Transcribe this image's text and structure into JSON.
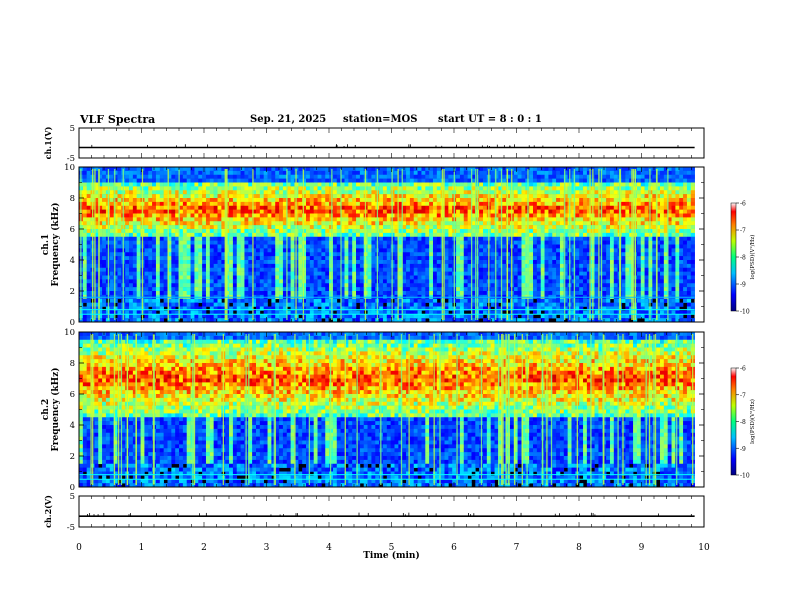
{
  "header": {
    "title": "VLF Spectra",
    "date": "Sep. 21, 2025",
    "station": "station=MOS",
    "start_ut": "start UT =  8 : 0  : 1"
  },
  "chart_data": [
    {
      "type": "line",
      "ylabel": "ch.1(V)",
      "ylim": [
        -5,
        5
      ],
      "yticks": [
        "5",
        "-5"
      ],
      "baseline": -1.5
    },
    {
      "type": "heatmap",
      "ylabel_top": "ch.1",
      "ylabel": "Frequency (kHz)",
      "ylim": [
        0,
        10
      ],
      "yticks": [
        "0",
        "2",
        "4",
        "6",
        "8",
        "10"
      ],
      "band_khz": [
        5.5,
        9.0
      ],
      "colorbar": {
        "label": "log(PSD)(V²/Hz)",
        "range": [
          -10,
          -6
        ],
        "ticks": [
          "-6",
          "-7",
          "-8",
          "-9",
          "-10"
        ]
      }
    },
    {
      "type": "heatmap",
      "ylabel_top": "ch.2",
      "ylabel": "Frequency (kHz)",
      "ylim": [
        0,
        10
      ],
      "yticks": [
        "0",
        "2",
        "4",
        "6",
        "8",
        "10"
      ],
      "band_khz": [
        4.5,
        9.5
      ],
      "colorbar": {
        "label": "log(PSD)(V²/Hz)",
        "range": [
          -10,
          -6
        ],
        "ticks": [
          "-6",
          "-7",
          "-8",
          "-9",
          "-10"
        ]
      }
    },
    {
      "type": "line",
      "ylabel": "ch.2(V)",
      "ylim": [
        -5,
        5
      ],
      "yticks": [
        "5",
        "-5"
      ],
      "baseline": -1.5
    }
  ],
  "xaxis": {
    "label": "Time (min)",
    "xlim": [
      0,
      10
    ],
    "ticks": [
      "0",
      "1",
      "2",
      "3",
      "4",
      "5",
      "6",
      "7",
      "8",
      "9",
      "10"
    ],
    "data_end": 9.85
  }
}
